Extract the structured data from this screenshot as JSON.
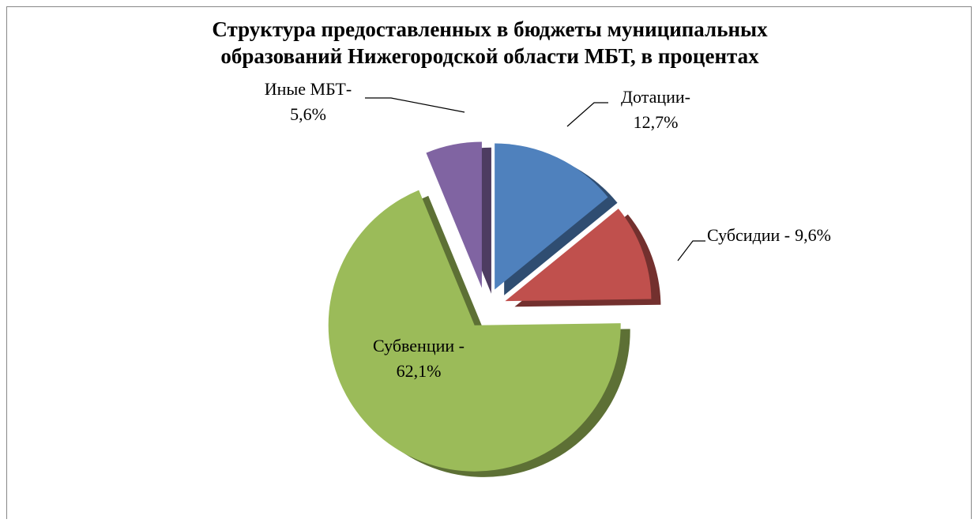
{
  "chart_data": {
    "type": "pie",
    "title": "Структура предоставленных в бюджеты муниципальных образований Нижегородской области МБТ,   в процентах",
    "categories": [
      "Дотации-",
      "Субсидии -",
      "Субвенции -",
      "Иные МБТ-"
    ],
    "values": [
      12.7,
      9.6,
      62.1,
      5.6
    ],
    "value_labels": [
      "12,7%",
      "9,6%",
      "62,1%",
      "5,6%"
    ],
    "colors": [
      "#4f81bd",
      "#c0504d",
      "#9bbb59",
      "#8064a2"
    ]
  }
}
